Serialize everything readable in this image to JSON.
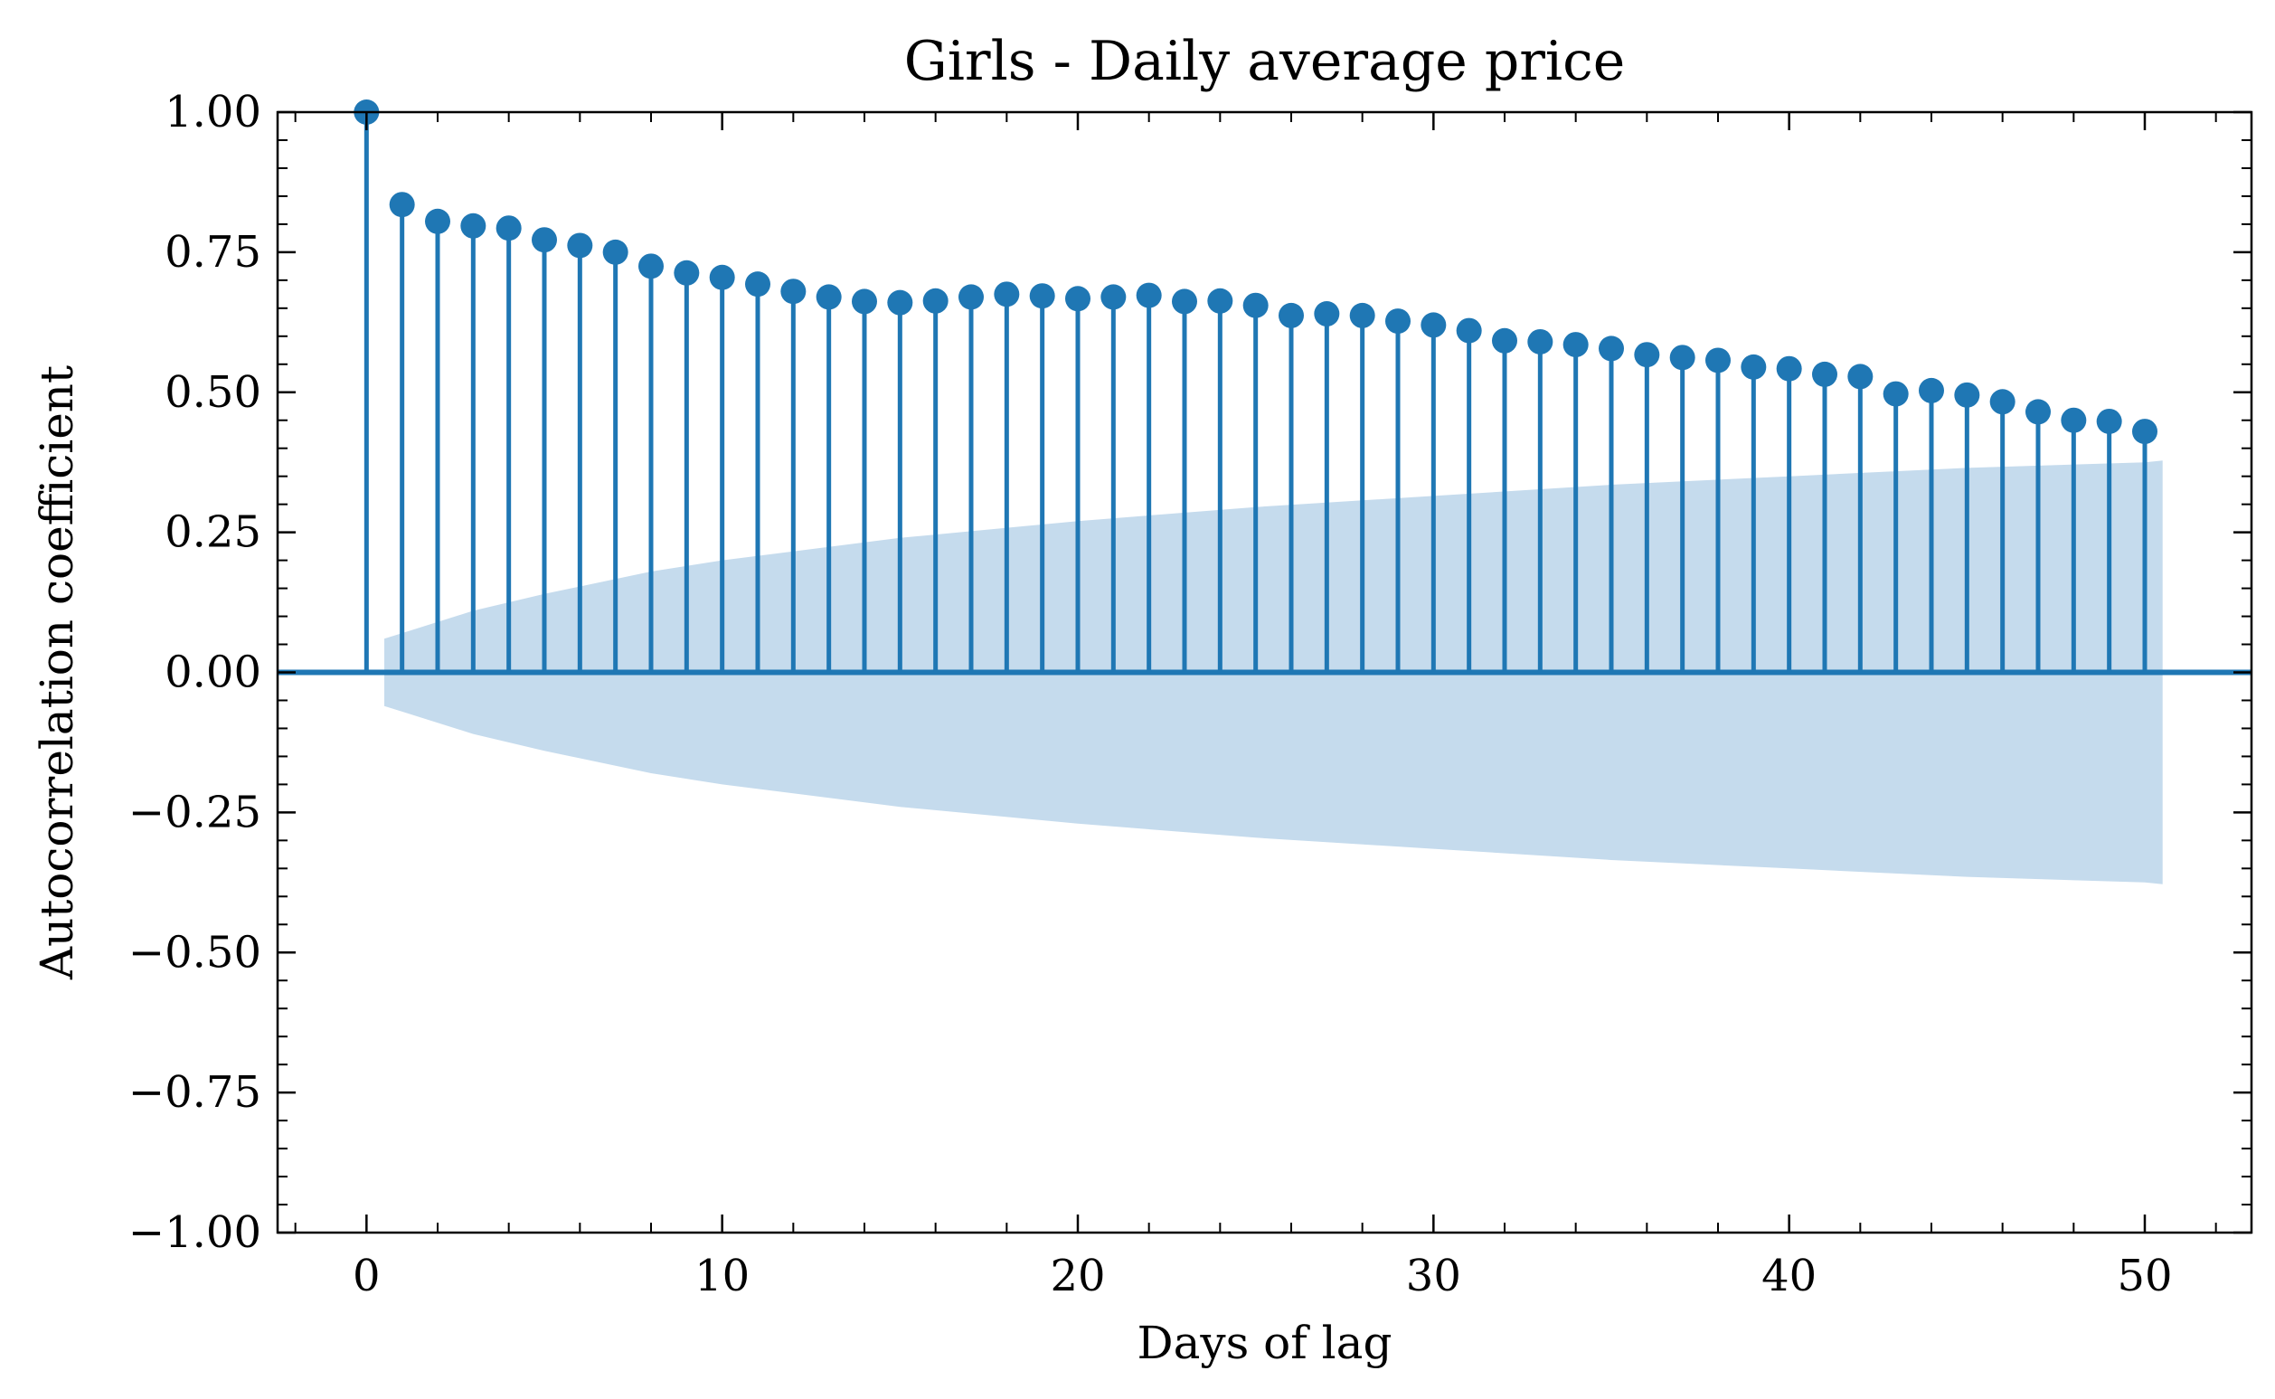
{
  "chart_data": {
    "type": "stem",
    "title": "Girls - Daily average price",
    "xlabel": "Days of lag",
    "ylabel": "Autocorrelation coefficient",
    "xlim": [
      -2.5,
      53
    ],
    "ylim": [
      -1.0,
      1.0
    ],
    "x_ticks": [
      0,
      10,
      20,
      30,
      40,
      50
    ],
    "x_tick_labels": [
      "0",
      "10",
      "20",
      "30",
      "40",
      "50"
    ],
    "y_ticks": [
      -1.0,
      -0.75,
      -0.5,
      -0.25,
      0.0,
      0.25,
      0.5,
      0.75,
      1.0
    ],
    "y_tick_labels": [
      "−1.00",
      "−0.75",
      "−0.50",
      "−0.25",
      "0.00",
      "0.25",
      "0.50",
      "0.75",
      "1.00"
    ],
    "series": [
      {
        "values": [
          1.0,
          0.835,
          0.805,
          0.797,
          0.793,
          0.772,
          0.762,
          0.75,
          0.725,
          0.713,
          0.705,
          0.693,
          0.68,
          0.67,
          0.662,
          0.66,
          0.663,
          0.67,
          0.675,
          0.672,
          0.667,
          0.67,
          0.673,
          0.662,
          0.663,
          0.655,
          0.637,
          0.64,
          0.637,
          0.627,
          0.62,
          0.61,
          0.592,
          0.59,
          0.585,
          0.578,
          0.567,
          0.562,
          0.557,
          0.545,
          0.542,
          0.532,
          0.528,
          0.497,
          0.503,
          0.495,
          0.483,
          0.465,
          0.45,
          0.448,
          0.43
        ]
      }
    ],
    "confidence_band": {
      "x_start": 0.5,
      "x_end": 50.5,
      "x": [
        0.5,
        1,
        2,
        3,
        5,
        8,
        10,
        15,
        20,
        25,
        30,
        35,
        40,
        45,
        50,
        50.5
      ],
      "upper": [
        0.06,
        0.07,
        0.09,
        0.11,
        0.14,
        0.18,
        0.2,
        0.24,
        0.27,
        0.295,
        0.315,
        0.335,
        0.35,
        0.365,
        0.375,
        0.378
      ]
    },
    "colors": {
      "stem": "#1f77b4",
      "band": "#c5dbed",
      "axes": "#000000"
    },
    "grid": false,
    "legend": "none"
  }
}
